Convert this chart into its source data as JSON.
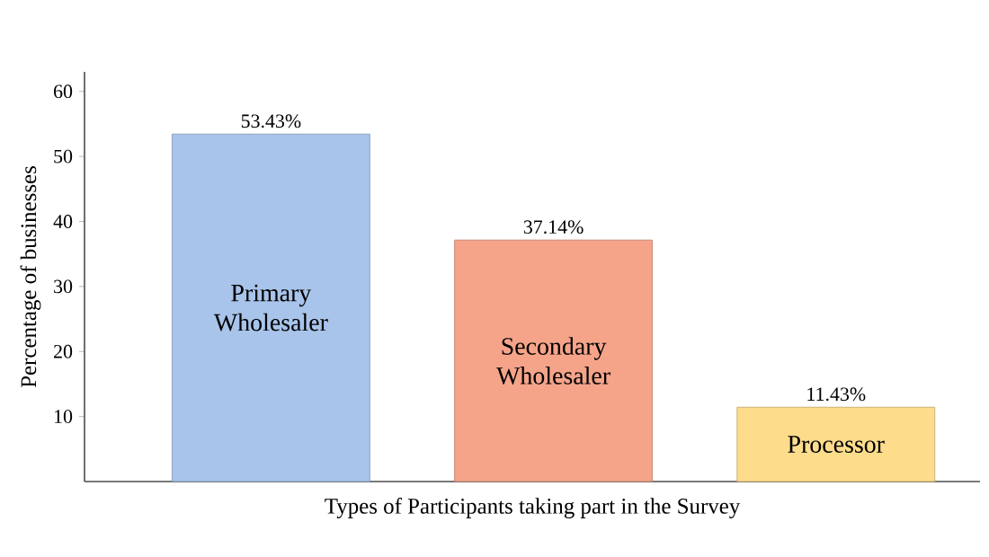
{
  "chart_data": {
    "type": "bar",
    "xlabel": "Types of Participants taking part in the Survey",
    "ylabel": "Percentage of businesses",
    "categories": [
      "Primary Wholesaler",
      "Secondary Wholesaler",
      "Processor"
    ],
    "values": [
      53.43,
      37.14,
      11.43
    ],
    "value_labels": [
      "53.43%",
      "37.14%",
      "11.43%"
    ],
    "colors": [
      "#a9c4ea",
      "#f5a48a",
      "#fddc8c"
    ],
    "ylim": [
      0,
      63
    ],
    "yticks": [
      10,
      20,
      30,
      40,
      50,
      60
    ],
    "grid": false
  }
}
